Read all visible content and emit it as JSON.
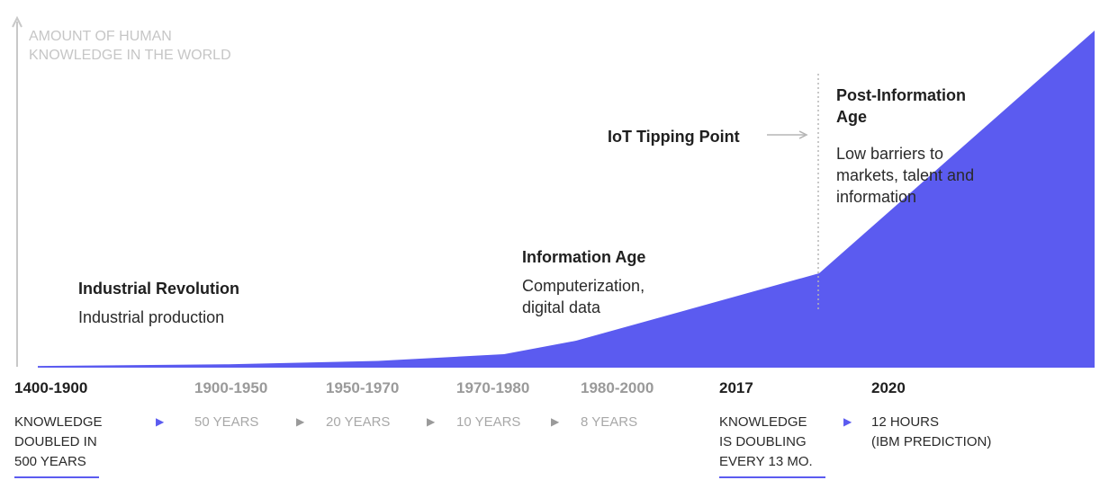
{
  "colors": {
    "area": "#5b5bf0",
    "axis": "#c8c8c8",
    "emphasis": "#1f1f1f",
    "muted": "#9a9a9a",
    "accent": "#5b5bf0"
  },
  "chart_data": {
    "type": "area",
    "title": "",
    "ylabel": [
      "AMOUNT OF HUMAN",
      "KNOWLEDGE IN THE WORLD"
    ],
    "x_categories": [
      "1400-1900",
      "1900-1950",
      "1950-1970",
      "1970-1980",
      "1980-2000",
      "2017",
      "2020"
    ],
    "durations": [
      [
        "KNOWLEDGE",
        "DOUBLED IN",
        "500 YEARS"
      ],
      [
        "50 YEARS"
      ],
      [
        "20 YEARS"
      ],
      [
        "10 YEARS"
      ],
      [
        "8 YEARS"
      ],
      [
        "KNOWLEDGE",
        "IS DOUBLING",
        "EVERY 13 MO."
      ],
      [
        "12 HOURS",
        "(IBM PREDICTION)"
      ]
    ],
    "series": [
      {
        "values": [
          0.5,
          1,
          2,
          4,
          8,
          28,
          100
        ]
      }
    ],
    "ylim": [
      0,
      100
    ],
    "annotations": {
      "industrial": {
        "title": "Industrial Revolution",
        "text": "Industrial production"
      },
      "information": {
        "title": "Information Age",
        "text": [
          "Computerization,",
          "digital data"
        ]
      },
      "iot": {
        "title": "IoT Tipping Point"
      },
      "post_info": {
        "title": [
          "Post-Information",
          "Age"
        ],
        "text": [
          "Low barriers to",
          "markets, talent and",
          "information"
        ]
      }
    }
  }
}
